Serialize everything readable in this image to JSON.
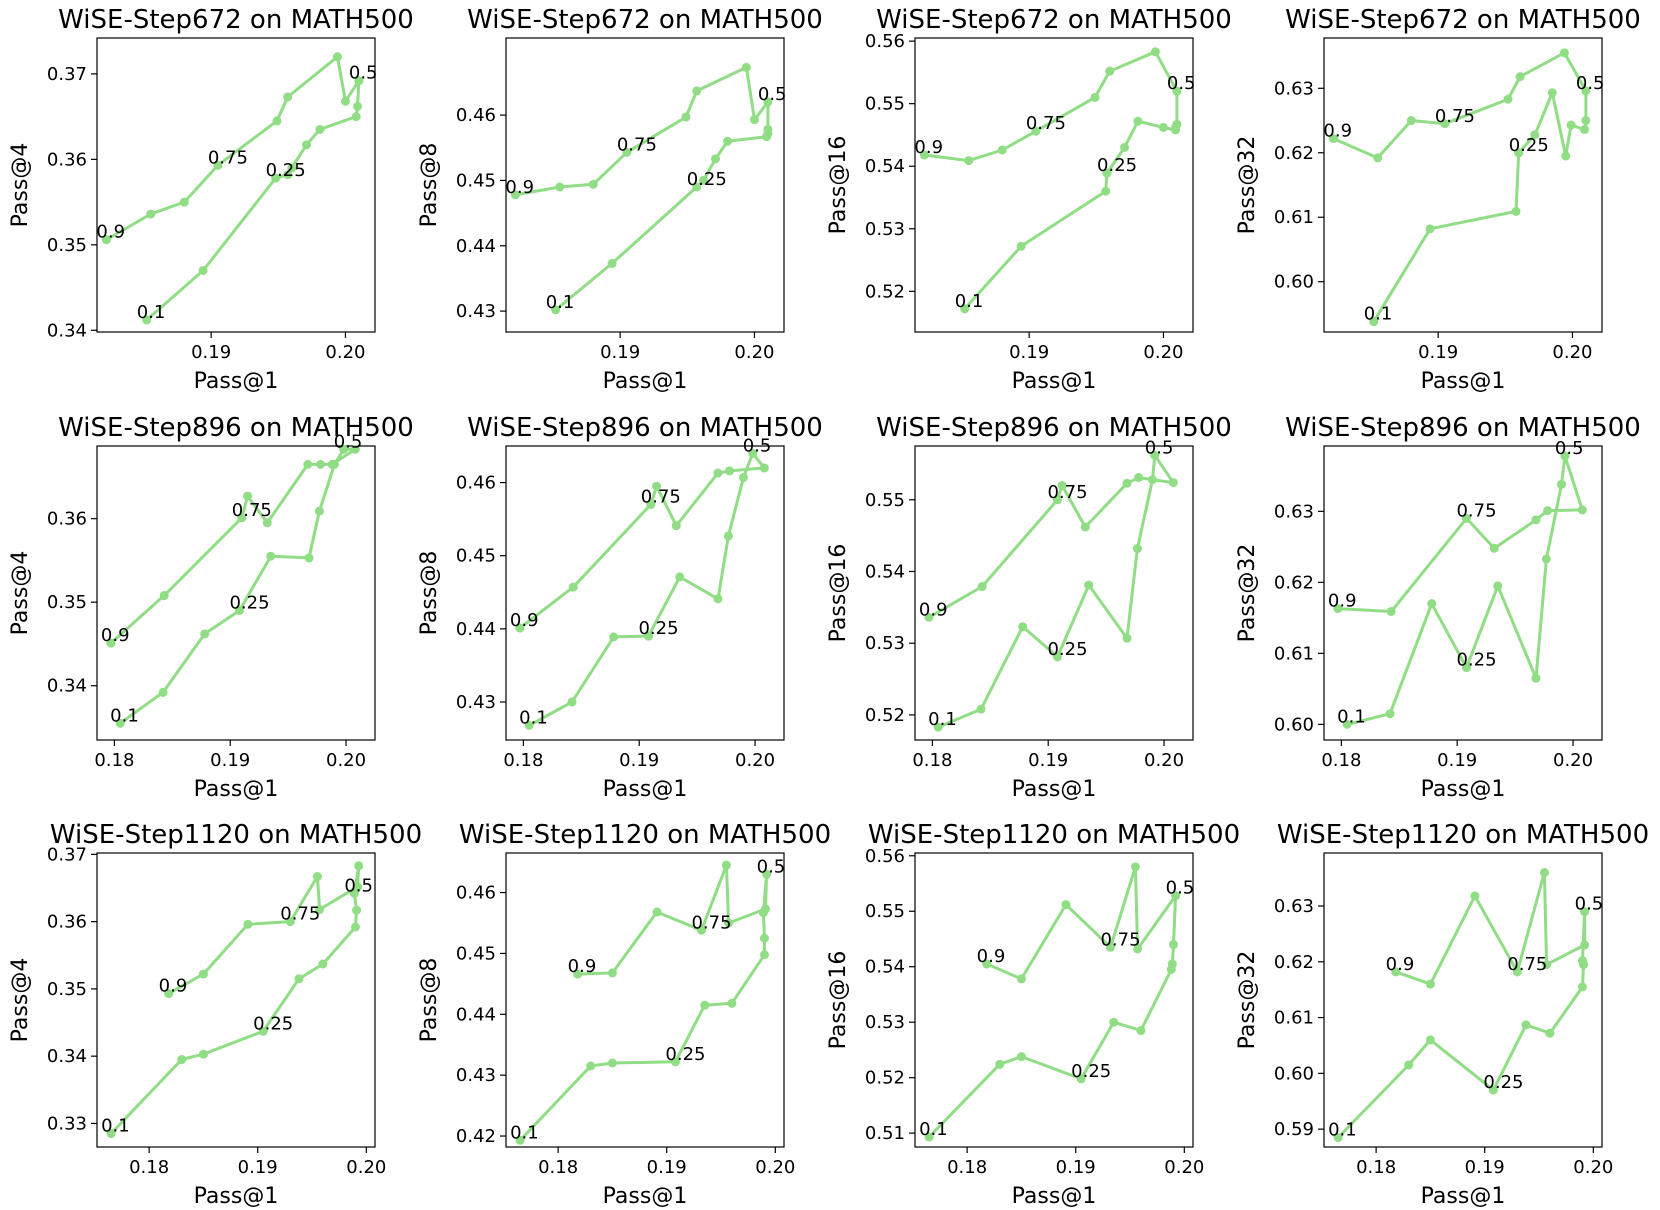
{
  "colors": {
    "series": "#90dd85"
  },
  "chart_data": [
    {
      "type": "line",
      "title": "WiSE-Step672 on MATH500",
      "xlabel": "Pass@1",
      "ylabel": "Pass@4",
      "xlim": [
        0.1815,
        0.2022
      ],
      "ylim": [
        0.3398,
        0.3742
      ],
      "xticks": [
        "0.19",
        "0.20"
      ],
      "yticks": [
        "0.34",
        "0.35",
        "0.36",
        "0.37"
      ],
      "x": [
        0.1852,
        0.1894,
        0.1948,
        0.1957,
        0.196,
        0.1971,
        0.1981,
        0.2008,
        0.2009,
        0.201,
        0.2,
        0.1994,
        0.1957,
        0.1949,
        0.1905,
        0.188,
        0.1855,
        0.1822
      ],
      "y": [
        0.3412,
        0.347,
        0.3578,
        0.3582,
        0.359,
        0.3617,
        0.3635,
        0.365,
        0.3662,
        0.3692,
        0.3668,
        0.372,
        0.3673,
        0.3645,
        0.3593,
        0.355,
        0.3536,
        0.3506
      ],
      "labels": [
        {
          "text": "0.1",
          "i": 0
        },
        {
          "text": "0.25",
          "i": 2
        },
        {
          "text": "0.5",
          "i": 9
        },
        {
          "text": "0.75",
          "i": 14
        },
        {
          "text": "0.9",
          "i": 17
        }
      ]
    },
    {
      "type": "line",
      "title": "WiSE-Step672 on MATH500",
      "xlabel": "Pass@1",
      "ylabel": "Pass@8",
      "xlim": [
        0.1815,
        0.2022
      ],
      "ylim": [
        0.4268,
        0.4718
      ],
      "xticks": [
        "0.19",
        "0.20"
      ],
      "yticks": [
        "0.43",
        "0.44",
        "0.45",
        "0.46"
      ],
      "x": [
        0.1852,
        0.1894,
        0.1957,
        0.1962,
        0.1971,
        0.198,
        0.2009,
        0.201,
        0.201,
        0.201,
        0.2,
        0.1994,
        0.1957,
        0.1949,
        0.1905,
        0.188,
        0.1855,
        0.1822
      ],
      "y": [
        0.4302,
        0.4373,
        0.449,
        0.45,
        0.4533,
        0.456,
        0.4567,
        0.4572,
        0.4578,
        0.462,
        0.4593,
        0.4673,
        0.4637,
        0.4597,
        0.4543,
        0.4494,
        0.449,
        0.4478
      ],
      "labels": [
        {
          "text": "0.1",
          "i": 0
        },
        {
          "text": "0.25",
          "i": 2
        },
        {
          "text": "0.5",
          "i": 9
        },
        {
          "text": "0.75",
          "i": 14
        },
        {
          "text": "0.9",
          "i": 17
        }
      ]
    },
    {
      "type": "line",
      "title": "WiSE-Step672 on MATH500",
      "xlabel": "Pass@1",
      "ylabel": "Pass@16",
      "xlim": [
        0.1815,
        0.2022
      ],
      "ylim": [
        0.5135,
        0.5605
      ],
      "xticks": [
        "0.19",
        "0.20"
      ],
      "yticks": [
        "0.52",
        "0.53",
        "0.54",
        "0.55",
        "0.56"
      ],
      "x": [
        0.1852,
        0.1894,
        0.1957,
        0.1958,
        0.1971,
        0.1981,
        0.2,
        0.2009,
        0.2009,
        0.201,
        0.201,
        0.1994,
        0.196,
        0.1949,
        0.1905,
        0.188,
        0.1855,
        0.1822
      ],
      "y": [
        0.5172,
        0.5272,
        0.536,
        0.5389,
        0.543,
        0.5472,
        0.5462,
        0.5458,
        0.5462,
        0.5467,
        0.552,
        0.5583,
        0.5552,
        0.551,
        0.5456,
        0.5426,
        0.5409,
        0.5418
      ],
      "labels": [
        {
          "text": "0.1",
          "i": 0
        },
        {
          "text": "0.25",
          "i": 3
        },
        {
          "text": "0.5",
          "i": 10
        },
        {
          "text": "0.75",
          "i": 14
        },
        {
          "text": "0.9",
          "i": 17
        }
      ]
    },
    {
      "type": "line",
      "title": "WiSE-Step672 on MATH500",
      "xlabel": "Pass@1",
      "ylabel": "Pass@32",
      "xlim": [
        0.1815,
        0.2022
      ],
      "ylim": [
        0.5922,
        0.6378
      ],
      "xticks": [
        "0.19",
        "0.20"
      ],
      "yticks": [
        "0.60",
        "0.61",
        "0.62",
        "0.63"
      ],
      "x": [
        0.1852,
        0.1894,
        0.1958,
        0.196,
        0.1972,
        0.1985,
        0.1995,
        0.1999,
        0.2009,
        0.201,
        0.201,
        0.1994,
        0.1961,
        0.1952,
        0.1905,
        0.188,
        0.1855,
        0.1822
      ],
      "y": [
        0.5938,
        0.6082,
        0.6109,
        0.62,
        0.6228,
        0.6293,
        0.6195,
        0.6243,
        0.6236,
        0.625,
        0.6296,
        0.6355,
        0.6318,
        0.6283,
        0.6245,
        0.625,
        0.6192,
        0.6222
      ],
      "labels": [
        {
          "text": "0.1",
          "i": 0
        },
        {
          "text": "0.25",
          "i": 3
        },
        {
          "text": "0.5",
          "i": 10
        },
        {
          "text": "0.75",
          "i": 14
        },
        {
          "text": "0.9",
          "i": 17
        }
      ]
    },
    {
      "type": "line",
      "title": "WiSE-Step896 on MATH500",
      "xlabel": "Pass@1",
      "ylabel": "Pass@4",
      "xlim": [
        0.1785,
        0.2025
      ],
      "ylim": [
        0.3335,
        0.3687
      ],
      "xticks": [
        "0.18",
        "0.19",
        "0.20"
      ],
      "yticks": [
        "0.34",
        "0.35",
        "0.36"
      ],
      "x": [
        0.1805,
        0.1842,
        0.1878,
        0.1908,
        0.1935,
        0.1968,
        0.1977,
        0.199,
        0.1998,
        0.2008,
        0.1988,
        0.1978,
        0.1967,
        0.1932,
        0.1915,
        0.191,
        0.1843,
        0.1797
      ],
      "y": [
        0.3355,
        0.3392,
        0.3462,
        0.349,
        0.3555,
        0.3553,
        0.3609,
        0.3665,
        0.3683,
        0.3683,
        0.3665,
        0.3665,
        0.3665,
        0.3595,
        0.3627,
        0.3601,
        0.3508,
        0.3451
      ],
      "labels": [
        {
          "text": "0.1",
          "i": 0
        },
        {
          "text": "0.25",
          "i": 3
        },
        {
          "text": "0.5",
          "i": 8
        },
        {
          "text": "0.75",
          "i": 15
        },
        {
          "text": "0.9",
          "i": 17
        }
      ]
    },
    {
      "type": "line",
      "title": "WiSE-Step896 on MATH500",
      "xlabel": "Pass@1",
      "ylabel": "Pass@8",
      "xlim": [
        0.1785,
        0.2025
      ],
      "ylim": [
        0.4248,
        0.465
      ],
      "xticks": [
        "0.18",
        "0.19",
        "0.20"
      ],
      "yticks": [
        "0.43",
        "0.44",
        "0.45",
        "0.46"
      ],
      "x": [
        0.1805,
        0.1842,
        0.1878,
        0.1908,
        0.1935,
        0.1968,
        0.1977,
        0.199,
        0.1998,
        0.2008,
        0.1978,
        0.1968,
        0.1932,
        0.1915,
        0.191,
        0.1843,
        0.1797
      ],
      "y": [
        0.4268,
        0.43,
        0.4389,
        0.439,
        0.4471,
        0.4441,
        0.4527,
        0.4607,
        0.464,
        0.462,
        0.4616,
        0.4613,
        0.4541,
        0.4595,
        0.457,
        0.4457,
        0.4401
      ],
      "labels": [
        {
          "text": "0.1",
          "i": 0
        },
        {
          "text": "0.25",
          "i": 3
        },
        {
          "text": "0.5",
          "i": 8
        },
        {
          "text": "0.75",
          "i": 14
        },
        {
          "text": "0.9",
          "i": 16
        }
      ]
    },
    {
      "type": "line",
      "title": "WiSE-Step896 on MATH500",
      "xlabel": "Pass@1",
      "ylabel": "Pass@16",
      "xlim": [
        0.1785,
        0.2025
      ],
      "ylim": [
        0.5165,
        0.5575
      ],
      "xticks": [
        "0.18",
        "0.19",
        "0.20"
      ],
      "yticks": [
        "0.52",
        "0.53",
        "0.54",
        "0.55"
      ],
      "x": [
        0.1805,
        0.1842,
        0.1878,
        0.1908,
        0.1935,
        0.1968,
        0.1977,
        0.199,
        0.1992,
        0.2008,
        0.1978,
        0.1968,
        0.1932,
        0.1912,
        0.1908,
        0.1843,
        0.1797
      ],
      "y": [
        0.5183,
        0.5208,
        0.5323,
        0.5281,
        0.5381,
        0.5307,
        0.5432,
        0.5528,
        0.5562,
        0.5524,
        0.5531,
        0.5523,
        0.5462,
        0.552,
        0.55,
        0.5379,
        0.5336
      ],
      "labels": [
        {
          "text": "0.1",
          "i": 0
        },
        {
          "text": "0.25",
          "i": 3
        },
        {
          "text": "0.5",
          "i": 8
        },
        {
          "text": "0.75",
          "i": 14
        },
        {
          "text": "0.9",
          "i": 16
        }
      ]
    },
    {
      "type": "line",
      "title": "WiSE-Step896 on MATH500",
      "xlabel": "Pass@1",
      "ylabel": "Pass@32",
      "xlim": [
        0.1785,
        0.2025
      ],
      "ylim": [
        0.5978,
        0.6392
      ],
      "xticks": [
        "0.18",
        "0.19",
        "0.20"
      ],
      "yticks": [
        "0.60",
        "0.61",
        "0.62",
        "0.63"
      ],
      "x": [
        0.1805,
        0.1842,
        0.1878,
        0.1908,
        0.1935,
        0.1968,
        0.1977,
        0.199,
        0.1993,
        0.2008,
        0.1978,
        0.1968,
        0.1932,
        0.1908,
        0.1843,
        0.1797
      ],
      "y": [
        0.6,
        0.6015,
        0.617,
        0.608,
        0.6195,
        0.6065,
        0.6233,
        0.6338,
        0.6378,
        0.6302,
        0.6301,
        0.6288,
        0.6248,
        0.629,
        0.6159,
        0.6163
      ],
      "labels": [
        {
          "text": "0.1",
          "i": 0
        },
        {
          "text": "0.25",
          "i": 3
        },
        {
          "text": "0.5",
          "i": 8
        },
        {
          "text": "0.75",
          "i": 13
        },
        {
          "text": "0.9",
          "i": 15
        }
      ]
    },
    {
      "type": "line",
      "title": "WiSE-Step1120 on MATH500",
      "xlabel": "Pass@1",
      "ylabel": "Pass@4",
      "xlim": [
        0.1752,
        0.2008
      ],
      "ylim": [
        0.3265,
        0.3702
      ],
      "xticks": [
        "0.18",
        "0.19",
        "0.20"
      ],
      "yticks": [
        "0.33",
        "0.34",
        "0.35",
        "0.36",
        "0.37"
      ],
      "x": [
        0.1765,
        0.183,
        0.185,
        0.1905,
        0.1938,
        0.196,
        0.199,
        0.1991,
        0.1989,
        0.1993,
        0.1992,
        0.1957,
        0.1955,
        0.193,
        0.1891,
        0.185,
        0.1818
      ],
      "y": [
        0.3285,
        0.3395,
        0.3403,
        0.3437,
        0.3515,
        0.3537,
        0.3592,
        0.3617,
        0.3642,
        0.3683,
        0.3652,
        0.3618,
        0.3667,
        0.36,
        0.3596,
        0.3522,
        0.3493
      ],
      "labels": [
        {
          "text": "0.1",
          "i": 0
        },
        {
          "text": "0.25",
          "i": 3
        },
        {
          "text": "0.5",
          "i": 8
        },
        {
          "text": "0.75",
          "i": 13
        },
        {
          "text": "0.9",
          "i": 16
        }
      ]
    },
    {
      "type": "line",
      "title": "WiSE-Step1120 on MATH500",
      "xlabel": "Pass@1",
      "ylabel": "Pass@8",
      "xlim": [
        0.1752,
        0.2008
      ],
      "ylim": [
        0.4182,
        0.4665
      ],
      "xticks": [
        "0.18",
        "0.19",
        "0.20"
      ],
      "yticks": [
        "0.42",
        "0.43",
        "0.44",
        "0.45",
        "0.46"
      ],
      "x": [
        0.1765,
        0.183,
        0.185,
        0.1908,
        0.1935,
        0.196,
        0.199,
        0.199,
        0.1989,
        0.1992,
        0.1991,
        0.1957,
        0.1955,
        0.1932,
        0.1891,
        0.185,
        0.1818
      ],
      "y": [
        0.4193,
        0.4315,
        0.432,
        0.4322,
        0.4415,
        0.4418,
        0.4498,
        0.4525,
        0.4567,
        0.463,
        0.4573,
        0.455,
        0.4645,
        0.4538,
        0.4568,
        0.4468,
        0.4466
      ],
      "labels": [
        {
          "text": "0.1",
          "i": 0
        },
        {
          "text": "0.25",
          "i": 3
        },
        {
          "text": "0.5",
          "i": 9
        },
        {
          "text": "0.75",
          "i": 13
        },
        {
          "text": "0.9",
          "i": 16
        }
      ]
    },
    {
      "type": "line",
      "title": "WiSE-Step1120 on MATH500",
      "xlabel": "Pass@1",
      "ylabel": "Pass@16",
      "xlim": [
        0.1752,
        0.2008
      ],
      "ylim": [
        0.5075,
        0.5605
      ],
      "xticks": [
        "0.18",
        "0.19",
        "0.20"
      ],
      "yticks": [
        "0.51",
        "0.52",
        "0.53",
        "0.54",
        "0.55",
        "0.56"
      ],
      "x": [
        0.1765,
        0.183,
        0.185,
        0.1905,
        0.1935,
        0.196,
        0.1988,
        0.1989,
        0.199,
        0.1992,
        0.1957,
        0.1955,
        0.1932,
        0.1891,
        0.185,
        0.1818
      ],
      "y": [
        0.5093,
        0.5224,
        0.5238,
        0.5198,
        0.53,
        0.5285,
        0.5395,
        0.5405,
        0.544,
        0.5528,
        0.5432,
        0.558,
        0.5435,
        0.5512,
        0.5378,
        0.5405
      ],
      "labels": [
        {
          "text": "0.1",
          "i": 0
        },
        {
          "text": "0.25",
          "i": 3
        },
        {
          "text": "0.5",
          "i": 9
        },
        {
          "text": "0.75",
          "i": 12
        },
        {
          "text": "0.9",
          "i": 15
        }
      ]
    },
    {
      "type": "line",
      "title": "WiSE-Step1120 on MATH500",
      "xlabel": "Pass@1",
      "ylabel": "Pass@32",
      "xlim": [
        0.1752,
        0.2008
      ],
      "ylim": [
        0.5868,
        0.6395
      ],
      "xticks": [
        "0.18",
        "0.19",
        "0.20"
      ],
      "yticks": [
        "0.59",
        "0.60",
        "0.61",
        "0.62",
        "0.63"
      ],
      "x": [
        0.1765,
        0.183,
        0.185,
        0.1908,
        0.1938,
        0.196,
        0.199,
        0.1991,
        0.199,
        0.1992,
        0.1992,
        0.1957,
        0.1955,
        0.193,
        0.1891,
        0.185,
        0.1818
      ],
      "y": [
        0.5885,
        0.6015,
        0.606,
        0.597,
        0.6087,
        0.6072,
        0.6155,
        0.6195,
        0.6202,
        0.629,
        0.623,
        0.6195,
        0.636,
        0.6182,
        0.6318,
        0.616,
        0.6182
      ],
      "labels": [
        {
          "text": "0.1",
          "i": 0
        },
        {
          "text": "0.25",
          "i": 3
        },
        {
          "text": "0.5",
          "i": 9
        },
        {
          "text": "0.75",
          "i": 13
        },
        {
          "text": "0.9",
          "i": 16
        }
      ]
    }
  ]
}
